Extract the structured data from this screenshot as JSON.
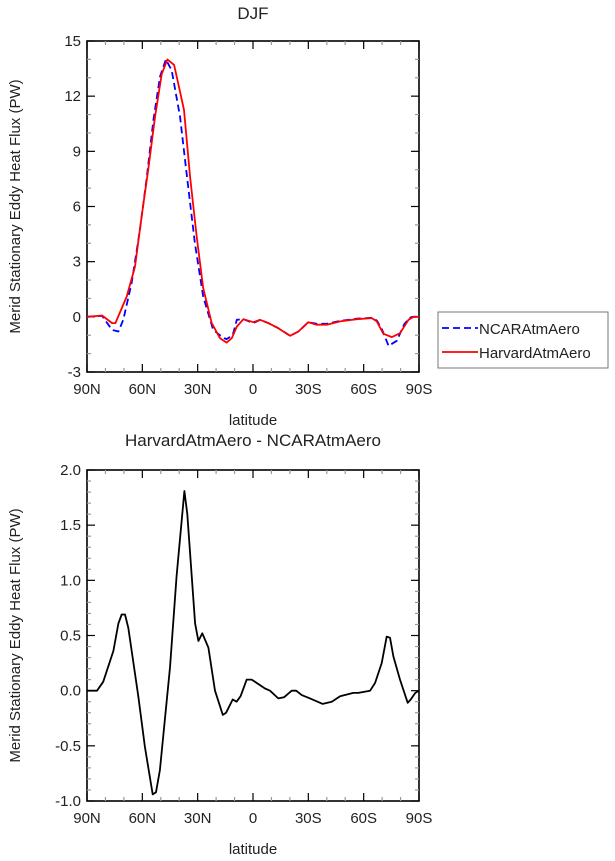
{
  "chart_data": [
    {
      "type": "line",
      "title": "DJF",
      "xlabel": "latitude",
      "ylabel": "Merid Stationary Eddy Heat Flux (PW)",
      "xlim": [
        90,
        -90
      ],
      "ylim": [
        -3,
        15
      ],
      "xticks": [
        90,
        60,
        30,
        0,
        -30,
        -60,
        -90
      ],
      "xtick_labels": [
        "90N",
        "60N",
        "30N",
        "0",
        "30S",
        "60S",
        "90S"
      ],
      "yticks": [
        15,
        12,
        9,
        6,
        3,
        0,
        -3
      ],
      "ytick_labels": [
        "15",
        "12",
        "9",
        "6",
        "3",
        "0",
        "-3"
      ],
      "legend": {
        "placement": "outside-right",
        "entries": [
          "NCARAtmAero",
          "HarvardAtmAero"
        ]
      },
      "series": [
        {
          "name": "NCARAtmAero",
          "color": "#0000ff",
          "dash": true,
          "x": [
            90,
            81.8,
            76.4,
            73,
            70.3,
            65.8,
            61.3,
            57.6,
            54,
            50.4,
            47.2,
            44.1,
            39.6,
            36,
            31.5,
            27,
            21.6,
            16,
            14.3,
            11,
            8.8,
            5.2,
            -0.2,
            -3.8,
            -8.3,
            -13.7,
            -20.1,
            -24.6,
            -30,
            -34.6,
            -40,
            -47.2,
            -56.3,
            -64.4,
            -67.1,
            -70,
            -73.5,
            -78,
            -82,
            -85,
            -87,
            -90
          ],
          "y": [
            0,
            0.05,
            -0.71,
            -0.8,
            -0.16,
            1.83,
            4.73,
            7.6,
            10.7,
            13.06,
            14.0,
            13.4,
            10.9,
            7.8,
            4.0,
            1.1,
            -0.71,
            -1.15,
            -1.21,
            -1.0,
            -0.16,
            -0.13,
            -0.34,
            -0.16,
            -0.34,
            -0.62,
            -1.03,
            -0.8,
            -0.29,
            -0.38,
            -0.38,
            -0.22,
            -0.1,
            -0.05,
            -0.2,
            -0.7,
            -1.58,
            -1.3,
            -0.4,
            -0.05,
            0,
            0
          ]
        },
        {
          "name": "HarvardAtmAero",
          "color": "#ff0000",
          "dash": false,
          "x": [
            90,
            81.8,
            76.4,
            74.6,
            68.5,
            64,
            60.4,
            56.8,
            53.1,
            49.5,
            46.4,
            42.8,
            39.9,
            37.4,
            34.1,
            30.5,
            27,
            22.4,
            17.9,
            14.3,
            11.5,
            8.8,
            5.2,
            -0.2,
            -3.8,
            -8.3,
            -13.7,
            -20.1,
            -24.6,
            -30,
            -34.6,
            -40,
            -47.2,
            -56.3,
            -64.4,
            -67.1,
            -70.7,
            -75.3,
            -79.7,
            -84.3,
            -87,
            -90
          ],
          "y": [
            0,
            0.07,
            -0.34,
            -0.34,
            1.1,
            2.73,
            5.45,
            7.99,
            10.9,
            13.2,
            14.0,
            13.7,
            12.4,
            11.25,
            7.6,
            4.36,
            1.56,
            -0.34,
            -1.16,
            -1.4,
            -1.16,
            -0.53,
            -0.13,
            -0.29,
            -0.16,
            -0.34,
            -0.62,
            -1.03,
            -0.8,
            -0.29,
            -0.43,
            -0.43,
            -0.25,
            -0.13,
            -0.07,
            -0.25,
            -0.92,
            -1.1,
            -0.89,
            -0.16,
            0,
            0
          ]
        }
      ]
    },
    {
      "type": "line",
      "title": "HarvardAtmAero - NCARAtmAero",
      "xlabel": "latitude",
      "ylabel": "Merid Stationary Eddy Heat Flux (PW)",
      "xlim": [
        90,
        -90
      ],
      "ylim": [
        -1.0,
        2.0
      ],
      "xticks": [
        90,
        60,
        30,
        0,
        -30,
        -60,
        -90
      ],
      "xtick_labels": [
        "90N",
        "60N",
        "30N",
        "0",
        "30S",
        "60S",
        "90S"
      ],
      "yticks": [
        2.0,
        1.5,
        1.0,
        0.5,
        0.0,
        -0.5,
        -1.0
      ],
      "ytick_labels": [
        "2.0",
        "1.5",
        "1.0",
        "0.5",
        "0.0",
        "-0.5",
        "-1.0"
      ],
      "series": [
        {
          "name": "HarvardAtmAero - NCARAtmAero",
          "color": "#000000",
          "dash": false,
          "x": [
            90,
            84.6,
            81.2,
            75.7,
            73,
            71.2,
            69.4,
            67.6,
            62.2,
            58.6,
            54.4,
            52.6,
            50.5,
            45,
            41.4,
            37.2,
            35.6,
            31.4,
            29.6,
            27.5,
            24.2,
            20.6,
            16.4,
            14.6,
            11,
            8.9,
            6.7,
            3.4,
            0.7,
            -6.5,
            -9.2,
            -13.7,
            -16.8,
            -21,
            -23.4,
            -26.4,
            -30.9,
            -37.8,
            -42.7,
            -47.2,
            -54.4,
            -57.1,
            -63.5,
            -66.2,
            -69.8,
            -72.5,
            -74.3,
            -76.1,
            -79.7,
            -83.9,
            -85.5,
            -88,
            -90
          ],
          "y": [
            0,
            0,
            0.08,
            0.36,
            0.61,
            0.69,
            0.69,
            0.57,
            -0.05,
            -0.51,
            -0.94,
            -0.92,
            -0.72,
            0.21,
            1.04,
            1.81,
            1.6,
            0.61,
            0.45,
            0.52,
            0.39,
            0,
            -0.22,
            -0.2,
            -0.08,
            -0.1,
            -0.05,
            0.1,
            0.1,
            0.02,
            0,
            -0.07,
            -0.06,
            0,
            0,
            -0.04,
            -0.07,
            -0.12,
            -0.1,
            -0.05,
            -0.02,
            -0.02,
            0,
            0.07,
            0.25,
            0.49,
            0.48,
            0.31,
            0.1,
            -0.11,
            -0.08,
            -0.02,
            0
          ]
        }
      ]
    }
  ]
}
